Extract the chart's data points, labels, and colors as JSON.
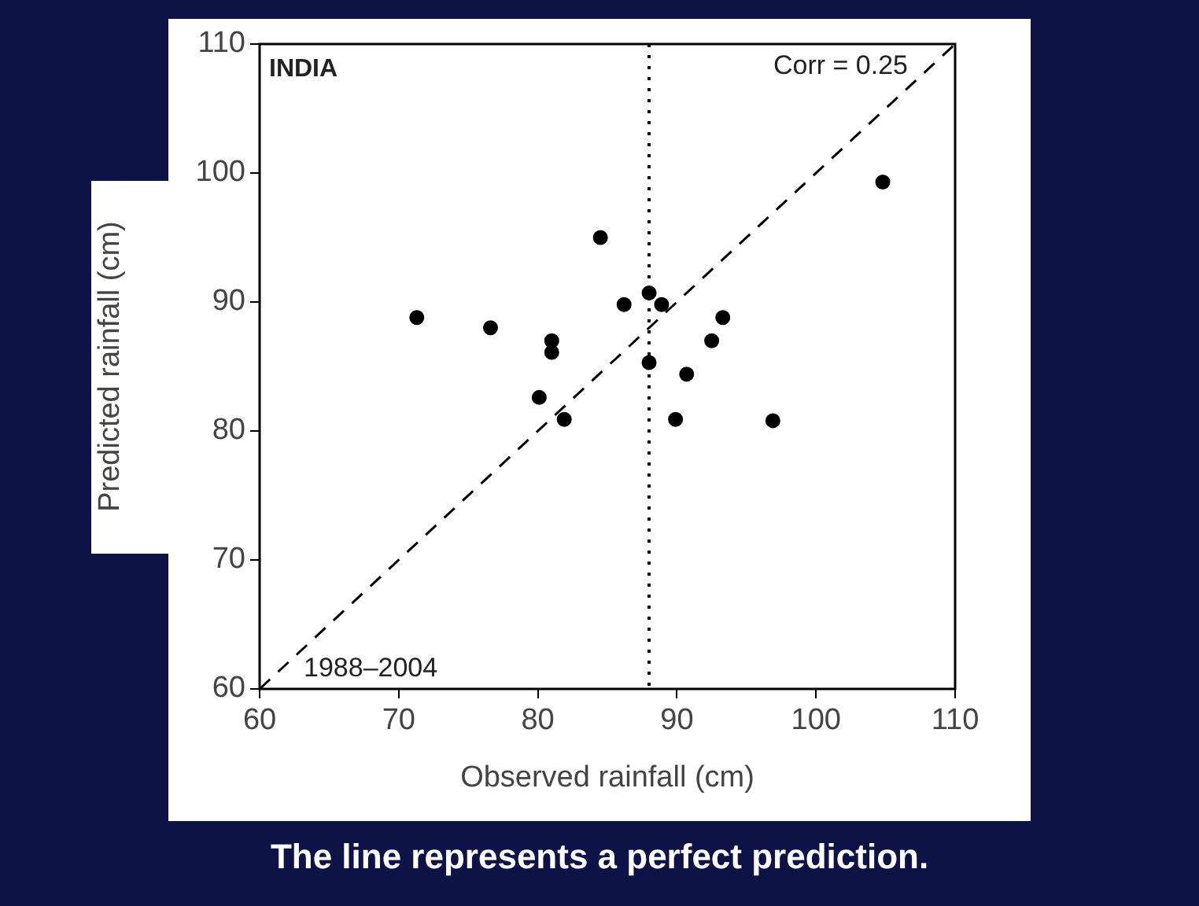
{
  "chart_data": {
    "type": "scatter",
    "xlabel": "Observed rainfall (cm)",
    "ylabel": "Predicted rainfall (cm)",
    "xlim": [
      60,
      110
    ],
    "xticks": [
      60,
      70,
      80,
      90,
      100,
      110
    ],
    "ylim": [
      60,
      110
    ],
    "yticks": [
      60,
      70,
      80,
      90,
      100,
      110
    ],
    "grid": false,
    "series": [
      {
        "type": "scatter",
        "color": "#000000",
        "marker": "circle",
        "x": [
          71.3,
          76.6,
          81.0,
          81.0,
          80.1,
          81.9,
          84.5,
          86.2,
          88.0,
          88.9,
          88.0,
          93.3,
          92.5,
          90.7,
          89.9,
          96.9,
          104.8
        ],
        "values": [
          88.8,
          88.0,
          87.0,
          86.1,
          82.6,
          80.9,
          95.0,
          89.8,
          90.7,
          89.8,
          85.3,
          88.8,
          87.0,
          84.4,
          80.9,
          80.8,
          99.3
        ]
      },
      {
        "type": "line",
        "color": "#000000",
        "line_style": "dashed",
        "marker": "none",
        "x": [
          60,
          110
        ],
        "values": [
          60,
          110
        ]
      }
    ],
    "ref_lines": [
      {
        "axis": "x",
        "value": 88,
        "color": "#000000",
        "line_style": "dotted"
      }
    ],
    "annotations": [
      "INDIA",
      "Corr = 0.25",
      "1988–2004",
      "The line represents a perfect prediction."
    ]
  }
}
